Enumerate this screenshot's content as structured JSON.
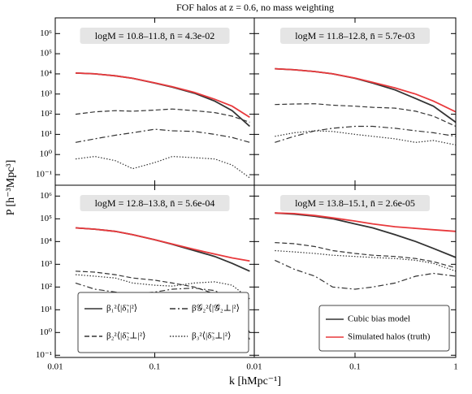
{
  "title": "FOF halos at z = 0.6, no mass weighting",
  "xlabel": "k [hMpc⁻¹]",
  "ylabel": "P [h⁻³Mpc³]",
  "chart_data": [
    {
      "type": "line",
      "annotation": "logM = 10.8–11.8, n̄ = 4.3e-02",
      "log_x": true,
      "log_y": true,
      "x": [
        0.016,
        0.025,
        0.04,
        0.06,
        0.1,
        0.15,
        0.25,
        0.4,
        0.6,
        0.9
      ],
      "xlim": [
        0.01,
        1
      ],
      "xticks": [
        0.01,
        0.1
      ],
      "ylim": [
        0.03,
        6000000
      ],
      "yticks": [
        {
          "value": 0.1,
          "label": "10⁻¹"
        },
        {
          "value": 1,
          "label": "10⁰"
        },
        {
          "value": 10,
          "label": "10¹"
        },
        {
          "value": 100,
          "label": "10²"
        },
        {
          "value": 1000,
          "label": "10³"
        },
        {
          "value": 10000,
          "label": "10⁴"
        },
        {
          "value": 100000,
          "label": "10⁵"
        },
        {
          "value": 1000000,
          "label": "10⁶"
        }
      ],
      "series": [
        {
          "color": "#333333",
          "dash": "solid",
          "values": [
            11000,
            10000,
            8000,
            6000,
            3500,
            2200,
            1100,
            450,
            150,
            25
          ]
        },
        {
          "color": "#e8393c",
          "dash": "solid",
          "values": [
            11000,
            10000,
            8000,
            6000,
            3600,
            2300,
            1200,
            550,
            250,
            70
          ]
        },
        {
          "color": "#333333",
          "dash": "dashed",
          "values": [
            100,
            130,
            150,
            140,
            160,
            180,
            150,
            120,
            80,
            40
          ]
        },
        {
          "color": "#333333",
          "dash": "dashdot",
          "values": [
            4,
            6,
            9,
            12,
            18,
            15,
            14,
            10,
            7,
            4
          ]
        },
        {
          "color": "#333333",
          "dash": "dotted",
          "values": [
            0.6,
            0.8,
            0.5,
            0.2,
            0.4,
            0.8,
            0.7,
            0.6,
            0.3,
            0.07
          ]
        }
      ]
    },
    {
      "type": "line",
      "annotation": "logM = 11.8–12.8, n̄ = 5.7e-03",
      "log_x": true,
      "log_y": true,
      "x": [
        0.016,
        0.025,
        0.04,
        0.06,
        0.1,
        0.15,
        0.25,
        0.4,
        0.6,
        1
      ],
      "xlim": [
        0.01,
        1
      ],
      "xticks": [
        0.01,
        0.1,
        1
      ],
      "ylim": [
        0.03,
        6000000
      ],
      "yticks": [
        0.1,
        1,
        10,
        100,
        1000,
        10000,
        100000,
        1000000
      ],
      "series": [
        {
          "color": "#333333",
          "dash": "solid",
          "values": [
            18000,
            16000,
            13000,
            10000,
            6000,
            3500,
            1600,
            600,
            250,
            40
          ]
        },
        {
          "color": "#e8393c",
          "dash": "solid",
          "values": [
            18000,
            16000,
            13000,
            10000,
            6200,
            3800,
            2000,
            1000,
            450,
            130
          ]
        },
        {
          "color": "#333333",
          "dash": "dashed",
          "values": [
            300,
            320,
            330,
            280,
            250,
            220,
            200,
            140,
            80,
            25
          ]
        },
        {
          "color": "#333333",
          "dash": "dashdot",
          "values": [
            4,
            8,
            15,
            20,
            25,
            25,
            20,
            15,
            12,
            8
          ]
        },
        {
          "color": "#333333",
          "dash": "dotted",
          "values": [
            8,
            12,
            15,
            14,
            10,
            8,
            6,
            4,
            5,
            3
          ]
        }
      ]
    },
    {
      "type": "line",
      "annotation": "logM = 12.8–13.8, n̄ = 5.6e-04",
      "log_x": true,
      "log_y": true,
      "x": [
        0.016,
        0.025,
        0.04,
        0.06,
        0.1,
        0.15,
        0.25,
        0.4,
        0.6,
        0.9
      ],
      "xlim": [
        0.01,
        1
      ],
      "xticks": [
        0.01,
        0.1
      ],
      "ylim": [
        0.08,
        3000000
      ],
      "yticks": [
        {
          "value": 0.1,
          "label": "10⁻¹"
        },
        {
          "value": 1,
          "label": "10⁰"
        },
        {
          "value": 10,
          "label": "10¹"
        },
        {
          "value": 100,
          "label": "10²"
        },
        {
          "value": 1000,
          "label": "10³"
        },
        {
          "value": 10000,
          "label": "10⁴"
        },
        {
          "value": 100000,
          "label": "10⁵"
        },
        {
          "value": 1000000,
          "label": "10⁶"
        }
      ],
      "legend": [
        {
          "name": "β₁²⟨|δ̃₁|²⟩",
          "color": "#333333",
          "dash": "solid"
        },
        {
          "name": "β𝒢₂²⟨|𝒢̃₂⊥|²⟩",
          "color": "#333333",
          "dash": "dashdot"
        },
        {
          "name": "β₂²⟨|δ̃₂⊥|²⟩",
          "color": "#333333",
          "dash": "dashed"
        },
        {
          "name": "β₃²⟨|δ̃₃⊥|²⟩",
          "color": "#333333",
          "dash": "dotted"
        }
      ],
      "series": [
        {
          "color": "#333333",
          "dash": "solid",
          "values": [
            40000,
            35000,
            28000,
            20000,
            12000,
            7500,
            4000,
            2200,
            1100,
            500
          ]
        },
        {
          "color": "#e8393c",
          "dash": "solid",
          "values": [
            40000,
            35000,
            28000,
            20000,
            12000,
            7800,
            4500,
            2800,
            1900,
            1400
          ]
        },
        {
          "color": "#333333",
          "dash": "dashed",
          "values": [
            500,
            450,
            350,
            250,
            200,
            150,
            100,
            50,
            10,
            0.5
          ]
        },
        {
          "color": "#333333",
          "dash": "dashdot",
          "values": [
            150,
            80,
            60,
            50,
            60,
            80,
            90,
            70,
            30,
            1
          ]
        },
        {
          "color": "#333333",
          "dash": "dotted",
          "values": [
            350,
            300,
            250,
            150,
            120,
            110,
            150,
            170,
            120,
            30
          ]
        }
      ]
    },
    {
      "type": "line",
      "annotation": "logM = 13.8–15.1, n̄ = 2.6e-05",
      "log_x": true,
      "log_y": true,
      "x": [
        0.016,
        0.025,
        0.04,
        0.06,
        0.1,
        0.15,
        0.25,
        0.4,
        0.6,
        1
      ],
      "xlim": [
        0.01,
        1
      ],
      "xticks": [
        0.01,
        0.1,
        1
      ],
      "ylim": [
        0.08,
        3000000
      ],
      "yticks": [
        0.1,
        1,
        10,
        100,
        1000,
        10000,
        100000,
        1000000
      ],
      "legend": [
        {
          "name": "Cubic bias model",
          "color": "#333333",
          "dash": "solid"
        },
        {
          "name": "Simulated halos (truth)",
          "color": "#e8393c",
          "dash": "solid"
        }
      ],
      "series": [
        {
          "color": "#333333",
          "dash": "solid",
          "values": [
            180000,
            160000,
            130000,
            100000,
            60000,
            40000,
            20000,
            10000,
            5000,
            2000
          ]
        },
        {
          "color": "#e8393c",
          "dash": "solid",
          "values": [
            180000,
            170000,
            140000,
            110000,
            80000,
            60000,
            45000,
            38000,
            33000,
            28000
          ]
        },
        {
          "color": "#333333",
          "dash": "dashed",
          "values": [
            9000,
            8000,
            6000,
            4000,
            3000,
            2500,
            2200,
            1800,
            1300,
            700
          ]
        },
        {
          "color": "#333333",
          "dash": "dashdot",
          "values": [
            1500,
            600,
            300,
            100,
            80,
            100,
            150,
            300,
            400,
            300
          ]
        },
        {
          "color": "#333333",
          "dash": "dotted",
          "values": [
            4000,
            3500,
            3000,
            2500,
            2200,
            2000,
            1800,
            1500,
            1100,
            500
          ]
        }
      ]
    }
  ]
}
